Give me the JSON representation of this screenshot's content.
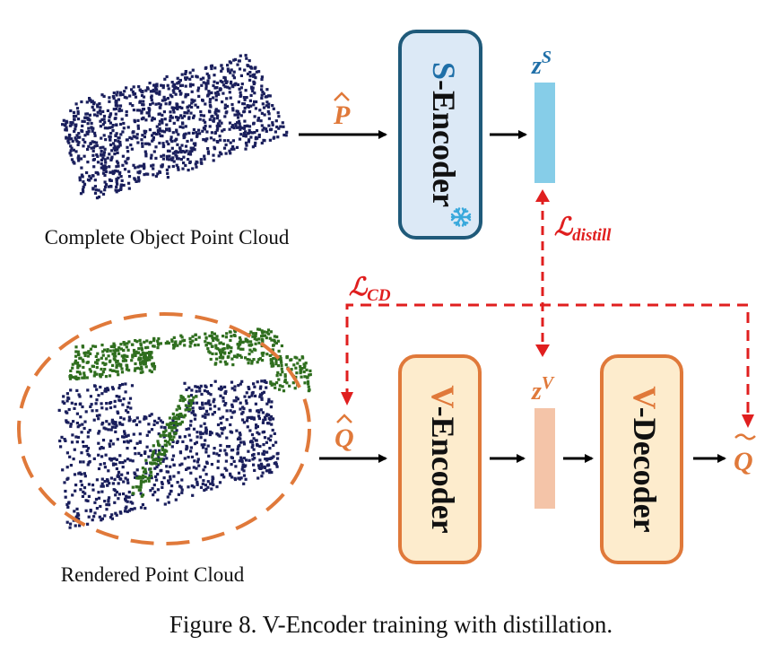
{
  "figure": {
    "caption": "Figure 8. V-Encoder training with distillation."
  },
  "labels": {
    "complete_cloud": "Complete Object Point Cloud",
    "rendered_cloud": "Rendered Point Cloud",
    "p_hat": "P",
    "q_hat": "Q",
    "q_tilde": "Q",
    "z_s": "z",
    "z_s_sup": "S",
    "z_v": "z",
    "z_v_sup": "V",
    "loss_distill": "ℒ",
    "loss_distill_sub": "distill",
    "loss_cd": "ℒ",
    "loss_cd_sub": "CD"
  },
  "blocks": {
    "s_encoder": {
      "prefix": "S",
      "rest": "-Encoder",
      "frozen_icon": "snowflake-icon"
    },
    "v_encoder": {
      "prefix": "V",
      "rest": "-Encoder"
    },
    "v_decoder": {
      "prefix": "V",
      "rest": "-Decoder"
    }
  },
  "colors": {
    "s_block_fill": "#dce9f6",
    "s_block_stroke": "#1f5a7a",
    "s_prefix": "#1f6fa8",
    "v_block_fill": "#fdeccd",
    "v_block_stroke": "#e0793a",
    "v_prefix": "#e0793a",
    "latent_s": "#86cde8",
    "latent_v": "#f4c4a8",
    "orange_text": "#e0793a",
    "teal_text": "#1f6fa8",
    "loss_red": "#e01f1f",
    "points_navy": "#1a1f5c",
    "points_green": "#2f6e1e",
    "snowflake": "#39a9dc"
  }
}
